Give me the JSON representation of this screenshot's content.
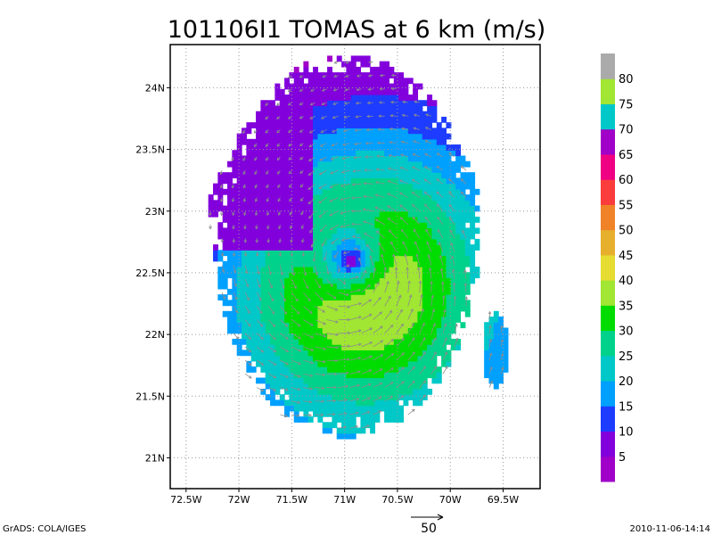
{
  "chart_data": {
    "type": "heatmap",
    "title": "101106I1 TOMAS at 6 km (m/s)",
    "x_ticks": [
      "72.5W",
      "72W",
      "71.5W",
      "71W",
      "70.5W",
      "70W",
      "69.5W"
    ],
    "y_ticks": [
      "21N",
      "21.5N",
      "22N",
      "22.5N",
      "23N",
      "23.5N",
      "24N"
    ],
    "lon_range": [
      -72.65,
      -69.15
    ],
    "lat_range": [
      20.75,
      24.35
    ],
    "grid": true,
    "colorbar": {
      "labels": [
        "5",
        "10",
        "15",
        "20",
        "25",
        "30",
        "35",
        "40",
        "45",
        "50",
        "55",
        "60",
        "65",
        "70",
        "75",
        "80"
      ],
      "colors": [
        "#a000c8",
        "#8200dc",
        "#1e3cff",
        "#00a0ff",
        "#00c8c8",
        "#00d28c",
        "#00dc00",
        "#a0e632",
        "#e6dc32",
        "#e6af2d",
        "#f08228",
        "#fa3c3c",
        "#f00082",
        "#a000c8",
        "#00c8c8",
        "#a0e632",
        "#aaaaaa"
      ]
    },
    "center": [
      -70.95,
      22.55
    ],
    "wind_max_ms": 33,
    "wind_min_ms": 3,
    "reference_vector": "50",
    "left_footer": "GrADS: COLA/IGES",
    "right_footer": "2010-11-06-14:14"
  }
}
